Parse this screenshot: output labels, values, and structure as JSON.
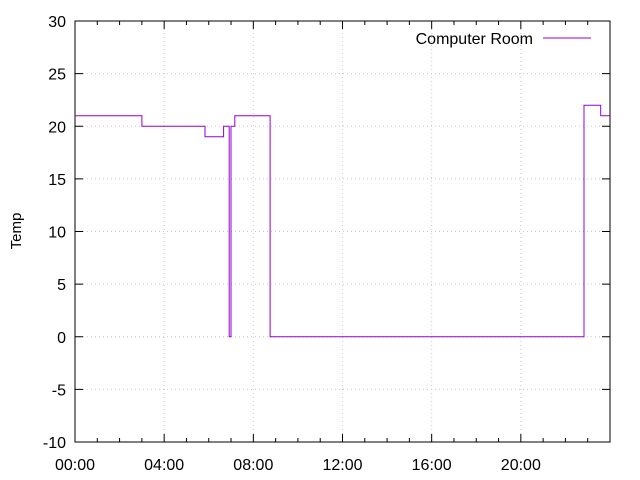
{
  "chart_data": {
    "type": "line",
    "title": "",
    "xlabel": "",
    "ylabel": "Temp",
    "xlim": [
      "00:00",
      "24:00"
    ],
    "ylim": [
      -10,
      30
    ],
    "grid": true,
    "legend_position": "top-right",
    "x_ticks": [
      "00:00",
      "04:00",
      "08:00",
      "12:00",
      "16:00",
      "20:00"
    ],
    "y_ticks": [
      "-10",
      "-5",
      "0",
      "5",
      "10",
      "15",
      "20",
      "25",
      "30"
    ],
    "series": [
      {
        "name": "Computer Room",
        "color": "#9400d3",
        "step": true,
        "points": [
          [
            "00:00",
            21
          ],
          [
            "03:00",
            21
          ],
          [
            "03:00",
            20
          ],
          [
            "05:50",
            20
          ],
          [
            "05:50",
            19
          ],
          [
            "06:40",
            19
          ],
          [
            "06:40",
            20
          ],
          [
            "06:55",
            20
          ],
          [
            "06:55",
            0
          ],
          [
            "07:00",
            0
          ],
          [
            "07:00",
            20
          ],
          [
            "07:10",
            20
          ],
          [
            "07:10",
            21
          ],
          [
            "08:45",
            21
          ],
          [
            "08:45",
            0
          ],
          [
            "22:50",
            0
          ],
          [
            "22:50",
            22
          ],
          [
            "23:35",
            22
          ],
          [
            "23:35",
            21
          ],
          [
            "24:00",
            21
          ]
        ]
      }
    ]
  }
}
